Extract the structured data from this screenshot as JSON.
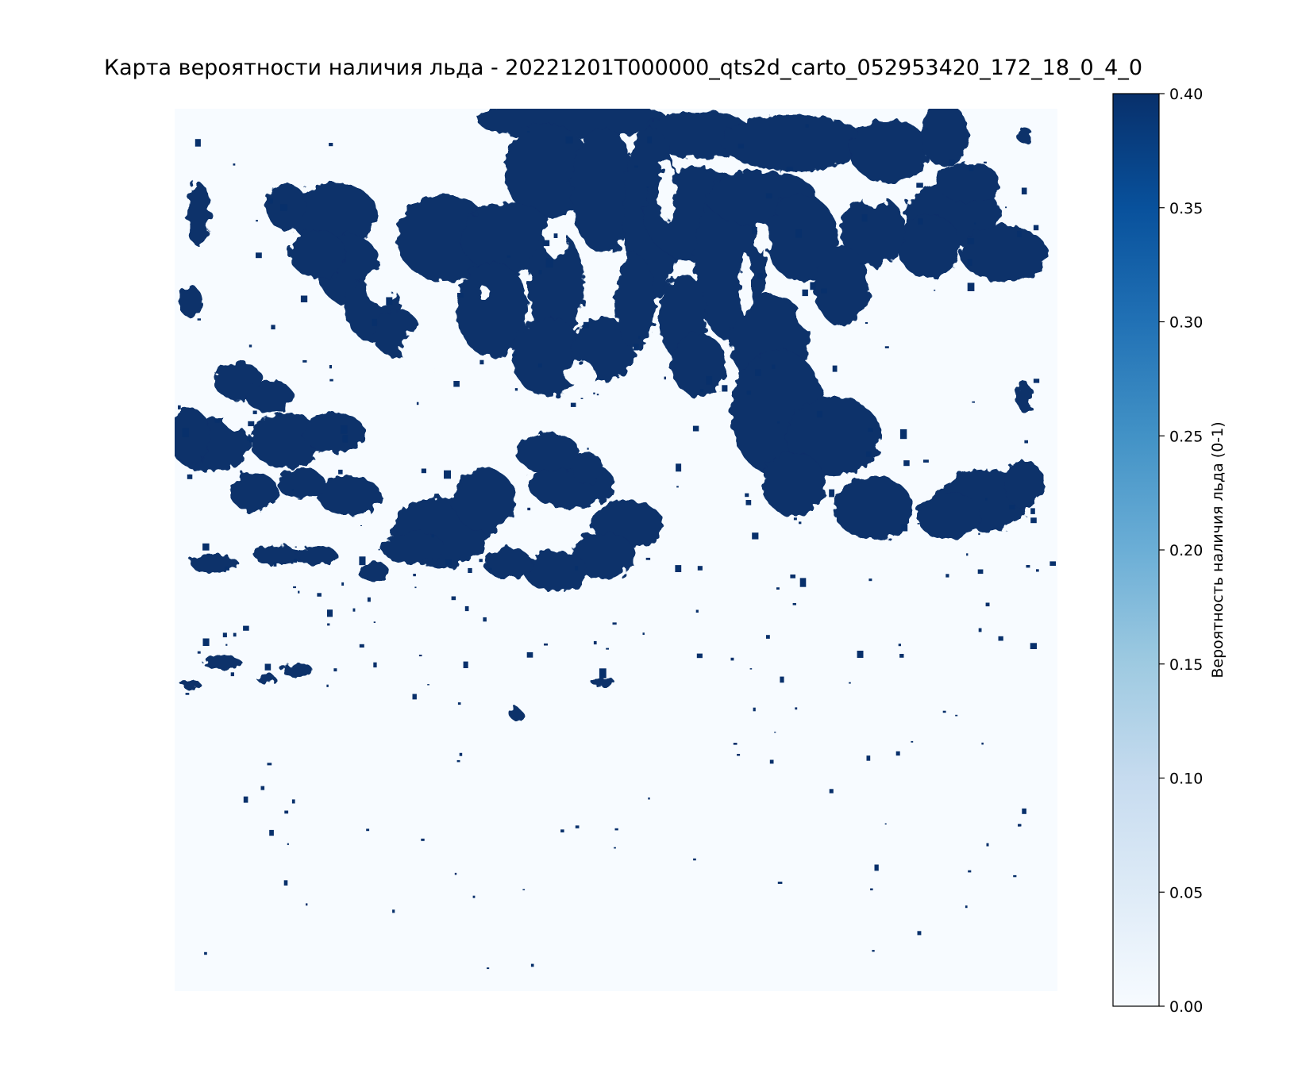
{
  "chart_data": {
    "type": "heatmap",
    "title": "Карта вероятности наличия льда - 20221201T000000_qts2d_carto_052953420_172_18_0_4_0",
    "xlabel": "",
    "ylabel": "",
    "axes_visible": false,
    "grid": false,
    "colormap": "Blues",
    "value_range": [
      0.0,
      0.4
    ],
    "background_value": 0.0,
    "ice_value": 0.4,
    "colorbar": {
      "label": "Вероятность наличия льда (0-1)",
      "ticks": [
        "0.00",
        "0.05",
        "0.10",
        "0.15",
        "0.20",
        "0.25",
        "0.30",
        "0.35",
        "0.40"
      ],
      "position": "right"
    },
    "colors": {
      "low": "#f7fbff",
      "mid": "#6baed6",
      "high": "#08306b"
    }
  }
}
